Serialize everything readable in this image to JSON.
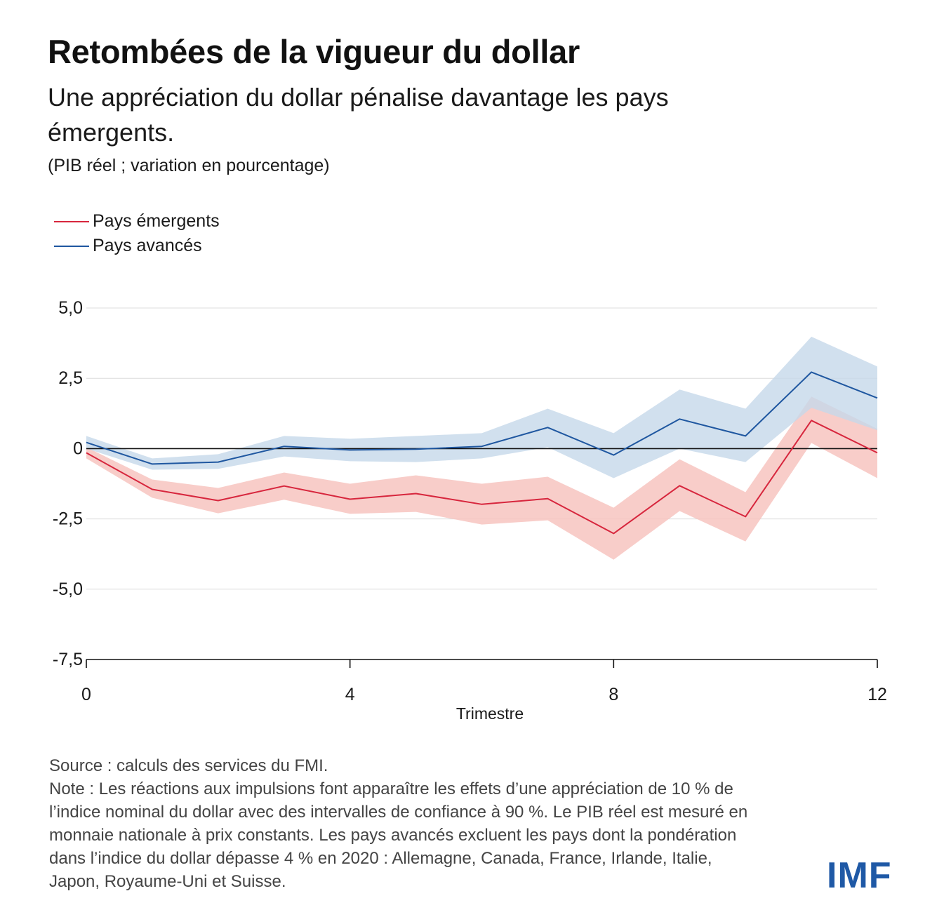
{
  "header": {
    "title": "Retombées de la vigueur du dollar",
    "subtitle": "Une appréciation du dollar pénalise davantage les pays émergents.",
    "unit": "(PIB réel ; variation en pourcentage)"
  },
  "footer": {
    "source": "Source : calculs des services du FMI.",
    "note": "Note : Les réactions aux impulsions font apparaître les effets d’une appréciation de 10 % de l’indice nominal du dollar avec des intervalles de confiance à 90 %. Le PIB réel est mesuré en monnaie nationale à prix constants. Les pays avancés excluent les pays dont la pondération dans l’indice du dollar dépasse 4 % en 2020 : Allemagne, Canada, France, Irlande, Italie, Japon, Royaume-Uni et Suisse."
  },
  "logo": {
    "text": "IMF"
  },
  "chart_data": {
    "type": "line",
    "title": "Retombées de la vigueur du dollar",
    "xlabel": "Trimestre",
    "ylabel": "",
    "x": [
      0,
      1,
      2,
      3,
      4,
      5,
      6,
      7,
      8,
      9,
      10,
      11,
      12
    ],
    "xlim": [
      0,
      12
    ],
    "ylim": [
      -7.5,
      5.0
    ],
    "xticks": [
      0,
      4,
      8,
      12
    ],
    "xtick_labels": [
      "0",
      "4",
      "8",
      "12"
    ],
    "yticks": [
      5.0,
      2.5,
      0,
      -2.5,
      -5.0,
      -7.5
    ],
    "ytick_labels": [
      "5,0",
      "2,5",
      "0",
      "-2,5",
      "-5,0",
      "-7,5"
    ],
    "grid": true,
    "legend_position": "top-left",
    "series": [
      {
        "name": "Pays émergents",
        "color": "#d7263d",
        "band_color": "#f7c4c0",
        "values": [
          -0.15,
          -1.45,
          -1.85,
          -1.33,
          -1.8,
          -1.6,
          -1.98,
          -1.78,
          -3.02,
          -1.32,
          -2.42,
          1.0,
          -0.15
        ],
        "lower": [
          -0.35,
          -1.75,
          -2.3,
          -1.82,
          -2.32,
          -2.25,
          -2.7,
          -2.55,
          -3.95,
          -2.22,
          -3.3,
          0.2,
          -1.05
        ],
        "upper": [
          0.05,
          -1.1,
          -1.4,
          -0.85,
          -1.25,
          -0.95,
          -1.25,
          -1.0,
          -2.1,
          -0.38,
          -1.55,
          1.85,
          0.7
        ]
      },
      {
        "name": "Pays avancés",
        "color": "#1f57a0",
        "band_color": "#c6d8ea",
        "values": [
          0.22,
          -0.55,
          -0.48,
          0.08,
          -0.05,
          -0.02,
          0.08,
          0.75,
          -0.23,
          1.05,
          0.45,
          2.72,
          1.8
        ],
        "lower": [
          0.0,
          -0.75,
          -0.72,
          -0.28,
          -0.45,
          -0.48,
          -0.35,
          0.05,
          -1.05,
          0.0,
          -0.48,
          1.45,
          0.65
        ],
        "upper": [
          0.45,
          -0.35,
          -0.2,
          0.45,
          0.35,
          0.45,
          0.55,
          1.42,
          0.55,
          2.1,
          1.42,
          3.98,
          2.92
        ]
      }
    ]
  }
}
